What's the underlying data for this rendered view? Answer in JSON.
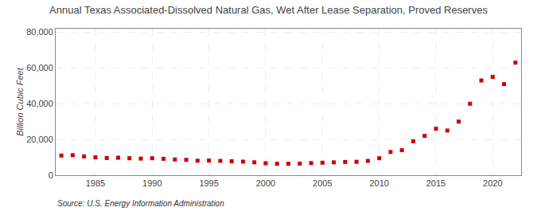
{
  "chart_data": {
    "type": "scatter",
    "title": "Annual Texas Associated-Dissolved Natural Gas, Wet After Lease Separation, Proved Reserves",
    "ylabel": "Billion Cubic Feet",
    "annotations": [
      "Source: U.S. Energy Information Administration"
    ],
    "x": [
      1982,
      1983,
      1984,
      1985,
      1986,
      1987,
      1988,
      1989,
      1990,
      1991,
      1992,
      1993,
      1994,
      1995,
      1996,
      1997,
      1998,
      1999,
      2000,
      2001,
      2002,
      2003,
      2004,
      2005,
      2006,
      2007,
      2008,
      2009,
      2010,
      2011,
      2012,
      2013,
      2014,
      2015,
      2016,
      2017,
      2018,
      2019,
      2020,
      2021,
      2022
    ],
    "values": [
      11000,
      11200,
      10500,
      10000,
      9600,
      9800,
      9500,
      9300,
      9500,
      9200,
      8800,
      8600,
      8100,
      8200,
      8000,
      7800,
      7600,
      7200,
      6700,
      6400,
      6400,
      6500,
      6800,
      7000,
      7200,
      7400,
      7500,
      8000,
      9500,
      13000,
      14000,
      19000,
      22000,
      26000,
      25000,
      30000,
      40000,
      53000,
      55000,
      51000,
      63000
    ],
    "color": "#cc0000",
    "marker": "square",
    "xlim": [
      1981.5,
      2022.5
    ],
    "xticks": [
      1985,
      1990,
      1995,
      2000,
      2005,
      2010,
      2015,
      2020
    ],
    "ylim": [
      0,
      82000
    ],
    "yticks": [
      0,
      {
        "value": 20000,
        "label": "20,000"
      },
      {
        "value": 40000,
        "label": "40,000"
      },
      {
        "value": 60000,
        "label": "60,000"
      },
      {
        "value": 80000,
        "label": "80,000"
      }
    ],
    "grid": true
  }
}
